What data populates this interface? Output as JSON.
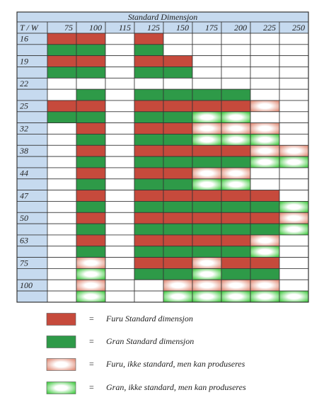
{
  "table": {
    "title": "Standard Dimensjon",
    "corner": "T / W",
    "columns": [
      "75",
      "100",
      "115",
      "125",
      "150",
      "175",
      "200",
      "225",
      "250"
    ],
    "rows": [
      {
        "label": "16",
        "furu": [
          0,
          0,
          null,
          0,
          null,
          null,
          null,
          null,
          null
        ],
        "gran": [
          1,
          1,
          null,
          1,
          null,
          null,
          null,
          null,
          null
        ]
      },
      {
        "label": "19",
        "furu": [
          0,
          0,
          null,
          0,
          0,
          null,
          null,
          null,
          null
        ],
        "gran": [
          1,
          1,
          null,
          1,
          1,
          null,
          null,
          null,
          null
        ]
      },
      {
        "label": "22",
        "furu": [
          null,
          null,
          null,
          null,
          null,
          null,
          null,
          null,
          null
        ],
        "gran": [
          null,
          1,
          null,
          1,
          1,
          1,
          1,
          null,
          null
        ]
      },
      {
        "label": "25",
        "furu": [
          0,
          0,
          null,
          0,
          0,
          0,
          0,
          2,
          null
        ],
        "gran": [
          1,
          1,
          null,
          1,
          1,
          3,
          3,
          null,
          null
        ]
      },
      {
        "label": "32",
        "furu": [
          null,
          0,
          null,
          0,
          0,
          2,
          2,
          2,
          null
        ],
        "gran": [
          null,
          1,
          null,
          1,
          1,
          3,
          3,
          3,
          null
        ]
      },
      {
        "label": "38",
        "furu": [
          null,
          0,
          null,
          0,
          0,
          0,
          0,
          2,
          2
        ],
        "gran": [
          null,
          1,
          null,
          1,
          1,
          1,
          1,
          3,
          3
        ]
      },
      {
        "label": "44",
        "furu": [
          null,
          0,
          null,
          0,
          0,
          2,
          2,
          null,
          null
        ],
        "gran": [
          null,
          1,
          null,
          1,
          1,
          3,
          3,
          null,
          null
        ]
      },
      {
        "label": "47",
        "furu": [
          null,
          0,
          null,
          0,
          0,
          0,
          0,
          0,
          null
        ],
        "gran": [
          null,
          1,
          null,
          1,
          1,
          1,
          1,
          1,
          3
        ]
      },
      {
        "label": "50",
        "furu": [
          null,
          0,
          null,
          0,
          0,
          0,
          0,
          0,
          2
        ],
        "gran": [
          null,
          1,
          null,
          1,
          1,
          1,
          1,
          1,
          3
        ]
      },
      {
        "label": "63",
        "furu": [
          null,
          0,
          null,
          0,
          0,
          0,
          0,
          2,
          null
        ],
        "gran": [
          null,
          1,
          null,
          1,
          1,
          1,
          1,
          3,
          null
        ]
      },
      {
        "label": "75",
        "furu": [
          null,
          2,
          null,
          0,
          0,
          2,
          0,
          0,
          null
        ],
        "gran": [
          null,
          3,
          null,
          1,
          1,
          3,
          1,
          1,
          null
        ]
      },
      {
        "label": "100",
        "furu": [
          null,
          2,
          null,
          null,
          2,
          2,
          2,
          2,
          null
        ],
        "gran": [
          null,
          3,
          null,
          null,
          3,
          3,
          3,
          3,
          3
        ]
      }
    ]
  },
  "legend": [
    {
      "symbol": "=",
      "label": "Furu Standard dimensjon",
      "color": "#c64a3c",
      "style": "solid"
    },
    {
      "symbol": "=",
      "label": "Gran Standard dimensjon",
      "color": "#2e9a48",
      "style": "solid"
    },
    {
      "symbol": "=",
      "label": "Furu, ikke standard, men kan produseres",
      "color": "#e39582",
      "style": "glow"
    },
    {
      "symbol": "=",
      "label": "Gran, ikke standard, men kan produseres",
      "color": "#52cf52",
      "style": "glow"
    }
  ]
}
